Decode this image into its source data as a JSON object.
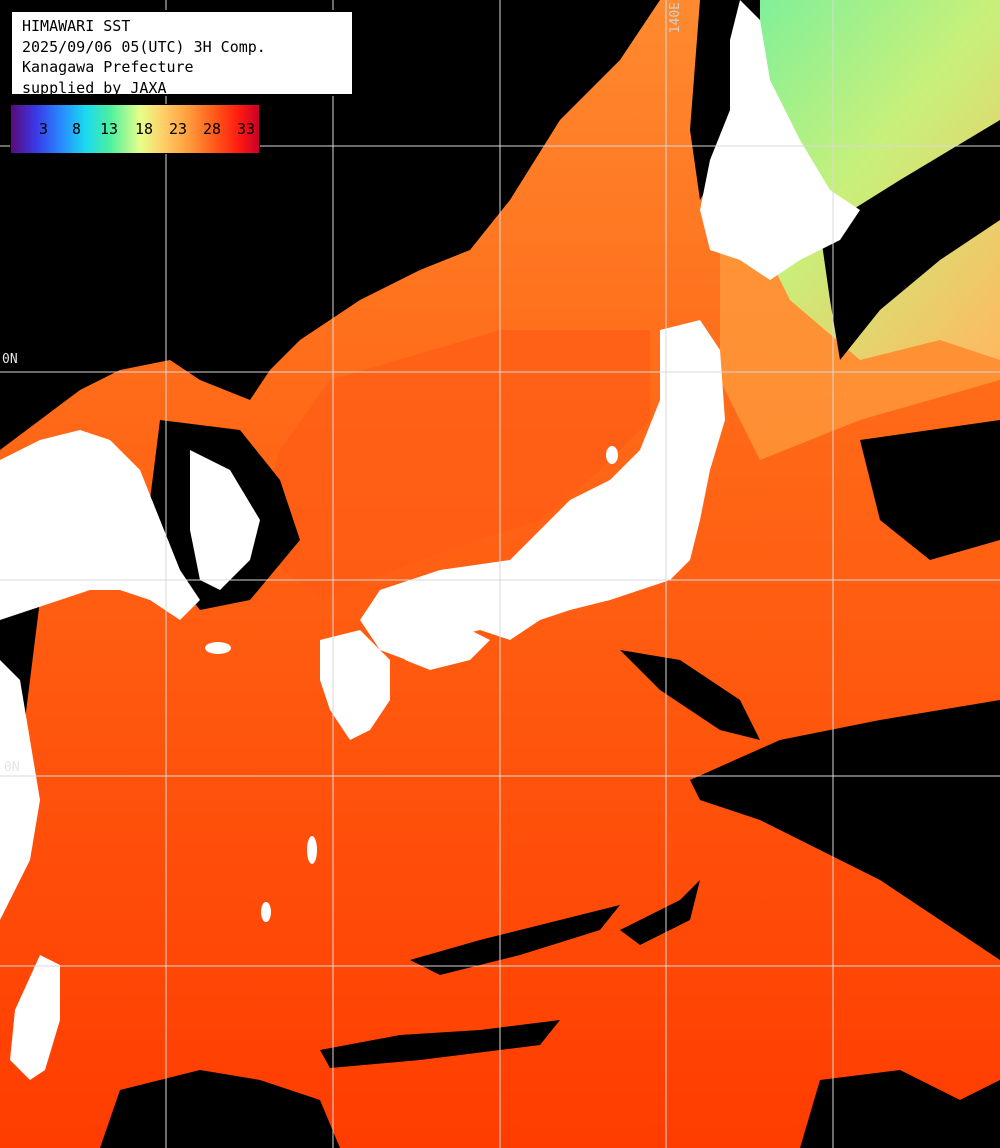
{
  "title": {
    "line1": "HIMAWARI SST",
    "line2": "2025/09/06 05(UTC) 3H Comp.",
    "line3": "Kanagawa Prefecture",
    "line4": "supplied by JAXA"
  },
  "legend": {
    "ticks": [
      "3",
      "8",
      "13",
      "18",
      "23",
      "28",
      "33"
    ]
  },
  "grid_labels": {
    "lon_140e": "140E",
    "lat_40n": "0N",
    "lat_30n": "0N"
  },
  "colors": {
    "land": "#ffffff",
    "cloud_no_data": "#000000",
    "warm_sea": "#ff4a00",
    "mid_sea": "#ff8a2a",
    "cool_sea": "#c8f07a",
    "cold_sea": "#6ff0a0",
    "gridline": "#d9d9d9"
  }
}
